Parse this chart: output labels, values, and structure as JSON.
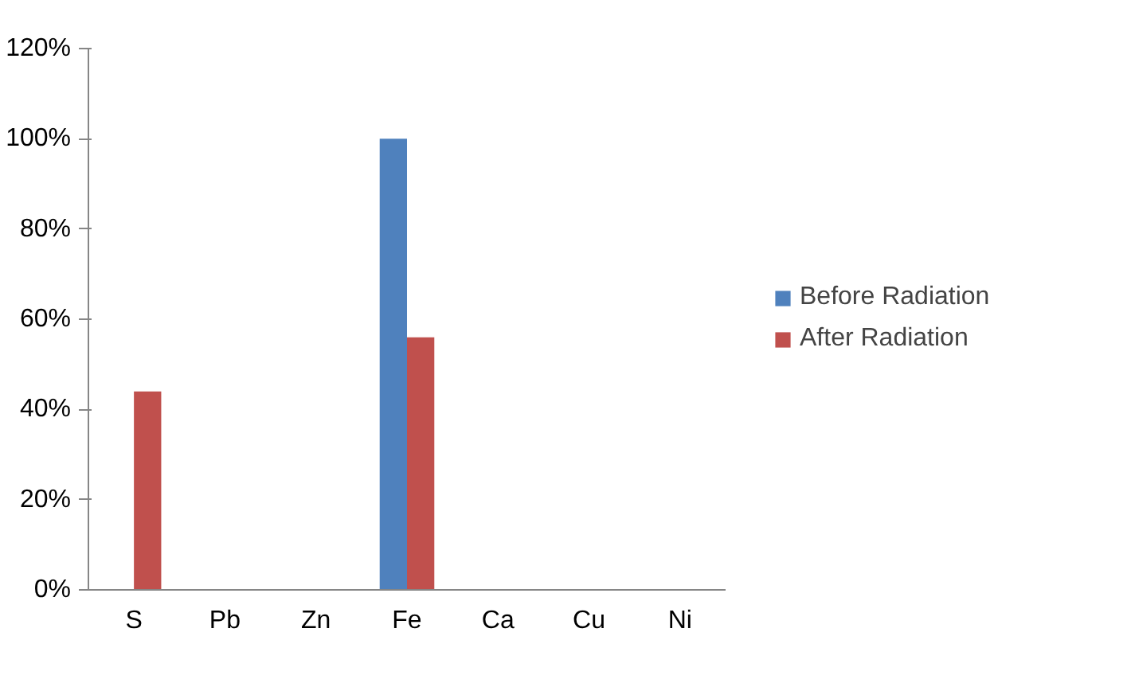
{
  "chart_data": {
    "type": "bar",
    "categories": [
      "S",
      "Pb",
      "Zn",
      "Fe",
      "Ca",
      "Cu",
      "Ni"
    ],
    "series": [
      {
        "name": "Before Radiation",
        "color": "#4f81bd",
        "values": [
          0,
          0,
          0,
          100,
          0,
          0,
          0
        ]
      },
      {
        "name": "After Radiation",
        "color": "#c0504d",
        "values": [
          44,
          0,
          0,
          56,
          0,
          0,
          0
        ]
      }
    ],
    "ylim": [
      0,
      120
    ],
    "yticks": [
      {
        "value": 0,
        "label": "0%"
      },
      {
        "value": 20,
        "label": "20%"
      },
      {
        "value": 40,
        "label": "40%"
      },
      {
        "value": 60,
        "label": "60%"
      },
      {
        "value": 80,
        "label": "80%"
      },
      {
        "value": 100,
        "label": "100%"
      },
      {
        "value": 120,
        "label": "120%"
      }
    ],
    "grid": false,
    "legend": "right"
  }
}
